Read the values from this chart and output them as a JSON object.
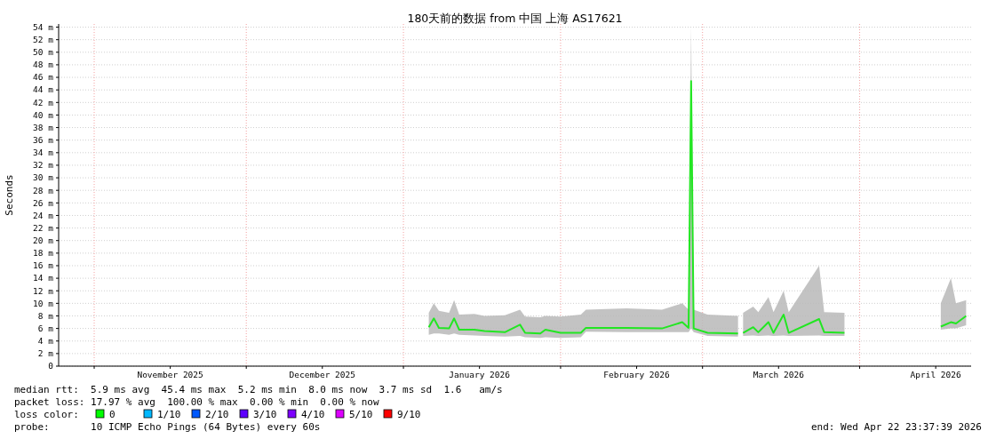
{
  "chart_data": {
    "type": "line",
    "title": "180天前的数据 from  中国 上海 AS17621",
    "ylabel": "Seconds",
    "x": [
      "2026-01-06",
      "2026-01-07",
      "2026-01-08",
      "2026-01-10",
      "2026-01-11",
      "2026-01-12",
      "2026-01-15",
      "2026-01-17",
      "2026-01-21",
      "2026-01-24",
      "2026-01-25",
      "2026-01-28",
      "2026-01-29",
      "2026-02-01",
      "2026-02-05",
      "2026-02-06",
      "2026-02-14",
      "2026-02-21",
      "2026-02-25",
      "2026-02-26T06:00",
      "2026-02-26T18:00",
      "2026-02-27T06:00",
      "2026-03-02",
      "2026-03-08",
      "2026-03-08T18:00",
      "2026-03-09",
      "2026-03-11",
      "2026-03-12",
      "2026-03-14",
      "2026-03-15",
      "2026-03-17",
      "2026-03-18",
      "2026-03-24",
      "2026-03-25",
      "2026-03-29",
      "2026-04-06",
      "2026-04-17",
      "2026-04-19",
      "2026-04-20",
      "2026-04-22"
    ],
    "series": [
      {
        "color": "#22e622",
        "values": [
          6.2,
          7.6,
          6.1,
          6.0,
          7.6,
          5.8,
          5.8,
          5.6,
          5.4,
          6.6,
          5.3,
          5.2,
          5.8,
          5.3,
          5.3,
          6.1,
          6.1,
          6.0,
          7.0,
          6.1,
          45.4,
          6.0,
          5.3,
          5.2,
          null,
          5.3,
          6.2,
          5.4,
          7.0,
          5.3,
          8.2,
          5.3,
          7.5,
          5.4,
          5.3,
          null,
          6.3,
          7.0,
          6.8,
          8.0
        ],
        "lower": [
          5.0,
          5.2,
          5.2,
          5.0,
          5.2,
          5.0,
          4.9,
          4.8,
          4.7,
          4.8,
          4.6,
          4.5,
          4.6,
          4.5,
          4.6,
          5.5,
          5.4,
          5.4,
          5.4,
          5.4,
          6.0,
          5.4,
          4.8,
          4.7,
          null,
          4.8,
          4.9,
          4.8,
          4.9,
          4.8,
          4.9,
          4.8,
          4.9,
          4.8,
          4.8,
          null,
          5.8,
          6.0,
          6.0,
          6.5
        ],
        "upper": [
          8.5,
          10.0,
          8.8,
          8.5,
          10.5,
          8.2,
          8.3,
          8.0,
          8.1,
          9.0,
          7.9,
          7.8,
          8.0,
          7.9,
          8.2,
          9.0,
          9.2,
          9.0,
          10.0,
          9.0,
          54.0,
          9.0,
          8.2,
          8.0,
          null,
          8.5,
          9.5,
          8.6,
          11.0,
          8.6,
          12.0,
          8.6,
          16.0,
          8.6,
          8.5,
          null,
          10.0,
          14.0,
          10.0,
          10.5
        ]
      }
    ],
    "xlim": [
      "2025-10-24T23:37",
      "2026-04-22T23:37"
    ],
    "xticks": [
      {
        "value": "2025-11-01",
        "label": null
      },
      {
        "value": "2025-11-16",
        "label": "November 2025"
      },
      {
        "value": "2025-12-01",
        "label": null
      },
      {
        "value": "2025-12-16",
        "label": "December 2025"
      },
      {
        "value": "2026-01-01",
        "label": null
      },
      {
        "value": "2026-01-16",
        "label": "January 2026"
      },
      {
        "value": "2026-02-01",
        "label": null
      },
      {
        "value": "2026-02-16",
        "label": "February 2026"
      },
      {
        "value": "2026-03-01",
        "label": null
      },
      {
        "value": "2026-03-16",
        "label": "March 2026"
      },
      {
        "value": "2026-04-01",
        "label": null
      },
      {
        "value": "2026-04-16",
        "label": "April 2026"
      }
    ],
    "ylim": [
      0,
      54.5
    ],
    "yticks": [
      0,
      {
        "value": 2,
        "label": "2 m"
      },
      {
        "value": 4,
        "label": "4 m"
      },
      {
        "value": 6,
        "label": "6 m"
      },
      {
        "value": 8,
        "label": "8 m"
      },
      {
        "value": 10,
        "label": "10 m"
      },
      {
        "value": 12,
        "label": "12 m"
      },
      {
        "value": 14,
        "label": "14 m"
      },
      {
        "value": 16,
        "label": "16 m"
      },
      {
        "value": 18,
        "label": "18 m"
      },
      {
        "value": 20,
        "label": "20 m"
      },
      {
        "value": 22,
        "label": "22 m"
      },
      {
        "value": 24,
        "label": "24 m"
      },
      {
        "value": 26,
        "label": "26 m"
      },
      {
        "value": 28,
        "label": "28 m"
      },
      {
        "value": 30,
        "label": "30 m"
      },
      {
        "value": 32,
        "label": "32 m"
      },
      {
        "value": 34,
        "label": "34 m"
      },
      {
        "value": 36,
        "label": "36 m"
      },
      {
        "value": 38,
        "label": "38 m"
      },
      {
        "value": 40,
        "label": "40 m"
      },
      {
        "value": 42,
        "label": "42 m"
      },
      {
        "value": 44,
        "label": "44 m"
      },
      {
        "value": 46,
        "label": "46 m"
      },
      {
        "value": 48,
        "label": "48 m"
      },
      {
        "value": 50,
        "label": "50 m"
      },
      {
        "value": 52,
        "label": "52 m"
      },
      {
        "value": 54,
        "label": "54 m"
      }
    ],
    "grid": true,
    "marker": "none",
    "line_style": "solid",
    "annotations": [
      "median rtt:  5.9 ms avg  45.4 ms max  5.2 ms min  8.0 ms now  3.7 ms sd  1.6   am/s",
      "packet loss: 17.97 % avg  100.00 % max  0.00 % min  0.00 % now",
      "loss color:",
      "0",
      "1/10",
      "2/10",
      "3/10",
      "4/10",
      "5/10",
      "9/10",
      "probe:       10 ICMP Echo Pings (64 Bytes) every 60s",
      "end: Wed Apr 22 23:37:39 2026"
    ]
  }
}
